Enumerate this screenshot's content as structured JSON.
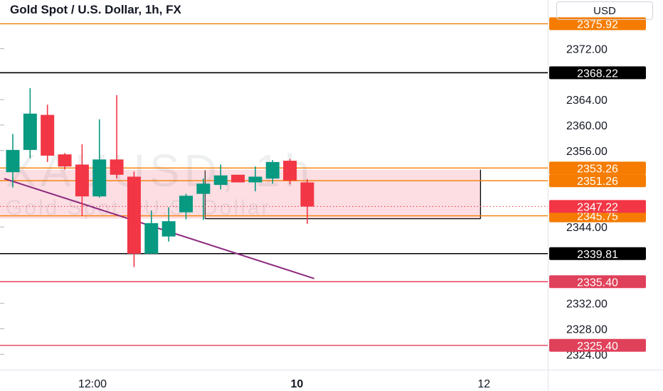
{
  "header": {
    "title": "Gold Spot / U.S. Dollar, 1h, FX",
    "currency": "USD"
  },
  "watermark": {
    "symbol": "XAUUSD, 1h",
    "name": "Gold Spot / U.S. Dollar"
  },
  "colors": {
    "up": "#089981",
    "down": "#f23645",
    "orange": "#f57c00",
    "black": "#000000",
    "red_line": "#e0415a",
    "trendline": "#8e2a7e",
    "zone_fill": "#fbd3da"
  },
  "chart_data": {
    "type": "candlestick",
    "title": "Gold Spot / U.S. Dollar, 1h, FX",
    "ylim": [
      2322.5,
      2379.0
    ],
    "y_ticks": [
      "2372.00",
      "2364.00",
      "2360.00",
      "2356.00",
      "2344.00",
      "2332.00",
      "2328.00",
      "2324.00"
    ],
    "x_ticks": [
      {
        "label": "12:00",
        "at": 4.6
      },
      {
        "label": "10",
        "at": 16.4,
        "bold": true
      },
      {
        "label": "12",
        "at": 27.2
      }
    ],
    "candles": [
      {
        "o": 2352.6,
        "h": 2358.6,
        "l": 2350.2,
        "c": 2356.1
      },
      {
        "o": 2356.1,
        "h": 2365.8,
        "l": 2354.8,
        "c": 2361.8
      },
      {
        "o": 2361.6,
        "h": 2363.2,
        "l": 2354.2,
        "c": 2355.2
      },
      {
        "o": 2355.4,
        "h": 2355.6,
        "l": 2353.0,
        "c": 2353.5
      },
      {
        "o": 2353.8,
        "h": 2357.0,
        "l": 2345.7,
        "c": 2348.8
      },
      {
        "o": 2348.8,
        "h": 2360.9,
        "l": 2348.6,
        "c": 2354.6
      },
      {
        "o": 2354.6,
        "h": 2364.7,
        "l": 2351.6,
        "c": 2352.2
      },
      {
        "o": 2351.9,
        "h": 2352.7,
        "l": 2337.7,
        "c": 2339.8
      },
      {
        "o": 2339.8,
        "h": 2346.6,
        "l": 2339.8,
        "c": 2344.6
      },
      {
        "o": 2342.5,
        "h": 2347.1,
        "l": 2341.7,
        "c": 2344.9
      },
      {
        "o": 2346.3,
        "h": 2349.2,
        "l": 2345.2,
        "c": 2348.9
      },
      {
        "o": 2349.2,
        "h": 2351.6,
        "l": 2345.1,
        "c": 2350.8
      },
      {
        "o": 2350.6,
        "h": 2353.8,
        "l": 2349.9,
        "c": 2352.1
      },
      {
        "o": 2352.2,
        "h": 2352.2,
        "l": 2351.0,
        "c": 2351.0
      },
      {
        "o": 2351.0,
        "h": 2353.5,
        "l": 2349.6,
        "c": 2351.9
      },
      {
        "o": 2351.6,
        "h": 2354.5,
        "l": 2350.8,
        "c": 2354.2
      },
      {
        "o": 2354.4,
        "h": 2354.7,
        "l": 2350.7,
        "c": 2351.3
      },
      {
        "o": 2351.0,
        "h": 2351.5,
        "l": 2344.5,
        "c": 2347.2
      }
    ],
    "levels": [
      {
        "value": 2375.92,
        "label": "2375.92",
        "kind": "orange"
      },
      {
        "value": 2368.22,
        "label": "2368.22",
        "kind": "black"
      },
      {
        "value": 2353.26,
        "label": "2353.26",
        "kind": "orange"
      },
      {
        "value": 2351.26,
        "label": "2351.26",
        "kind": "orange"
      },
      {
        "value": 2345.75,
        "label": "2345.75",
        "kind": "orange"
      },
      {
        "value": 2339.81,
        "label": "2339.81",
        "kind": "black"
      },
      {
        "value": 2335.4,
        "label": "2335.40",
        "kind": "red"
      },
      {
        "value": 2325.4,
        "label": "2325.40",
        "kind": "red"
      }
    ],
    "last_price": {
      "value": 2347.22,
      "label": "2347.22"
    },
    "zone": {
      "top": 2353.0,
      "bottom": 2345.3,
      "x_end": 27.0,
      "inner_from": 11.1
    },
    "trendline": {
      "from": [
        -0.5,
        2351.6
      ],
      "to": [
        17.4,
        2335.9
      ]
    }
  }
}
